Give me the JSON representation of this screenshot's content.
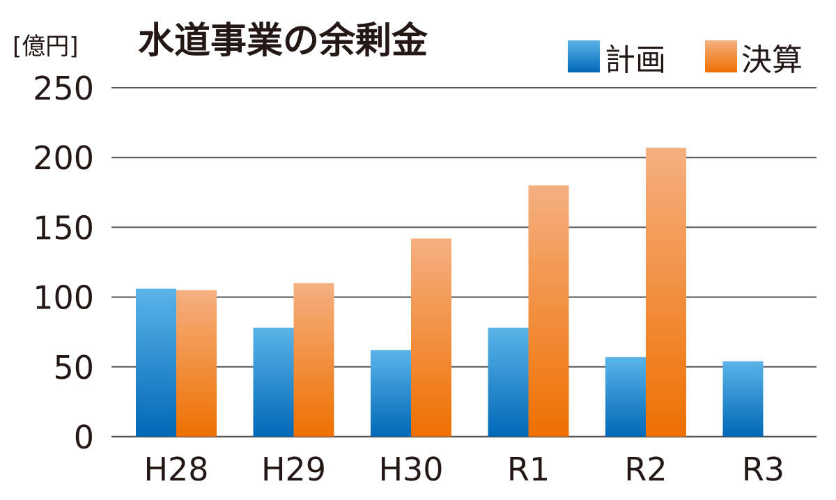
{
  "chart_data": {
    "type": "bar",
    "title": "水道事業の余剰金",
    "ylabel": "[億円]",
    "xlabel": "",
    "categories": [
      "H28",
      "H29",
      "H30",
      "R1",
      "R2",
      "R3"
    ],
    "series": [
      {
        "name": "計画",
        "values": [
          106,
          78,
          62,
          78,
          57,
          54
        ],
        "color_top": "#5ab4e8",
        "color_bottom": "#0068b7"
      },
      {
        "name": "決算",
        "values": [
          105,
          110,
          142,
          180,
          207,
          null
        ],
        "color_top": "#f5b080",
        "color_bottom": "#ee7000"
      }
    ],
    "ylim": [
      0,
      250
    ],
    "yticks": [
      0,
      50,
      100,
      150,
      200,
      250
    ],
    "grid": true,
    "legend_position": "top-right"
  }
}
